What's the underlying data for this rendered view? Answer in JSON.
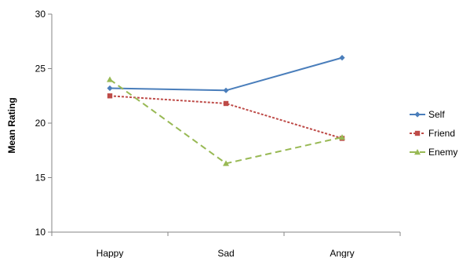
{
  "chart_data": {
    "type": "line",
    "title": "",
    "xlabel": "",
    "ylabel": "Mean Rating",
    "categories": [
      "Happy",
      "Sad",
      "Angry"
    ],
    "ylim": [
      10,
      30
    ],
    "yticks": [
      10,
      15,
      20,
      25,
      30
    ],
    "grid": false,
    "legend_position": "right",
    "series": [
      {
        "name": "Self",
        "values": [
          23.2,
          23.0,
          26.0
        ],
        "color": "#4a7ebb",
        "marker": "diamond",
        "line_style": "solid"
      },
      {
        "name": "Friend",
        "values": [
          22.5,
          21.8,
          18.6
        ],
        "color": "#be4b48",
        "marker": "square",
        "line_style": "dotted"
      },
      {
        "name": "Enemy",
        "values": [
          24.0,
          16.3,
          18.7
        ],
        "color": "#98b954",
        "marker": "triangle",
        "line_style": "dashed"
      }
    ]
  }
}
